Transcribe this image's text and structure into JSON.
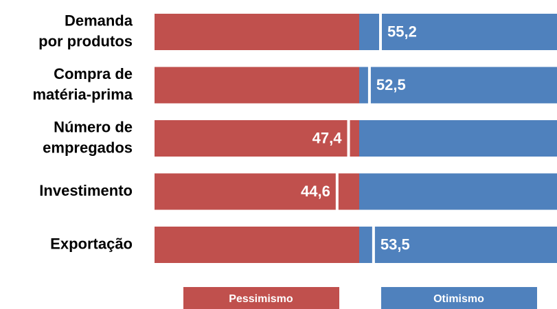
{
  "chart_data": {
    "type": "diverging-bar",
    "categories": [
      [
        "Demanda",
        "por produtos"
      ],
      [
        "Compra de",
        "matéria-prima"
      ],
      [
        "Número de",
        "empregados"
      ],
      [
        "Investimento"
      ],
      [
        "Exportação"
      ]
    ],
    "values": [
      55.2,
      52.5,
      47.4,
      44.6,
      53.5
    ],
    "value_labels": [
      "55,2",
      "52,5",
      "47,4",
      "44,6",
      "53,5"
    ],
    "xlim": [
      0,
      100
    ],
    "threshold": 50,
    "series": [
      {
        "name": "Pessimismo",
        "color": "#c0504d"
      },
      {
        "name": "Otimismo",
        "color": "#4f81bd"
      }
    ]
  }
}
